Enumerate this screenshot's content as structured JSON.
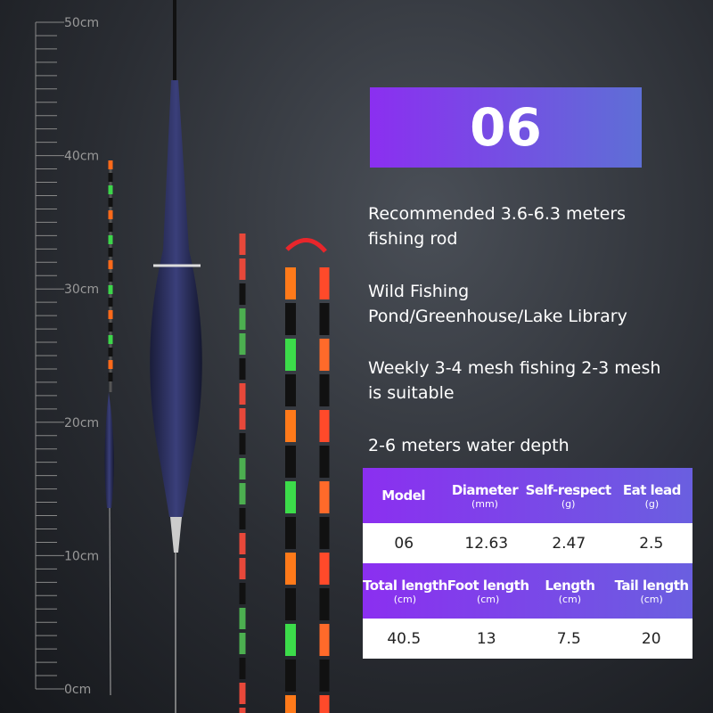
{
  "ruler": {
    "labels": [
      "50cm",
      "40cm",
      "30cm",
      "20cm",
      "10cm",
      "0cm"
    ]
  },
  "badge": "06",
  "features": [
    "Recommended 3.6-6.3 meters fishing rod",
    "Wild Fishing Pond/Greenhouse/Lake Library",
    "Weekly 3-4 mesh fishing 2-3 mesh is suitable",
    "2-6 meters water depth"
  ],
  "table": {
    "sections": [
      {
        "headers": [
          {
            "name": "Model"
          },
          {
            "name": "Diameter",
            "unit": "(mm)"
          },
          {
            "name": "Self-respect",
            "unit": "(g)"
          },
          {
            "name": "Eat lead",
            "unit": "(g)"
          }
        ],
        "values": [
          "06",
          "12.63",
          "2.47",
          "2.5"
        ]
      },
      {
        "headers": [
          {
            "name": "Total length",
            "unit": "(cm)"
          },
          {
            "name": "Foot length",
            "unit": "(cm)"
          },
          {
            "name": "Length",
            "unit": "(cm)"
          },
          {
            "name": "Tail length",
            "unit": "(cm)"
          }
        ],
        "values": [
          "40.5",
          "13",
          "7.5",
          "20"
        ]
      }
    ]
  }
}
